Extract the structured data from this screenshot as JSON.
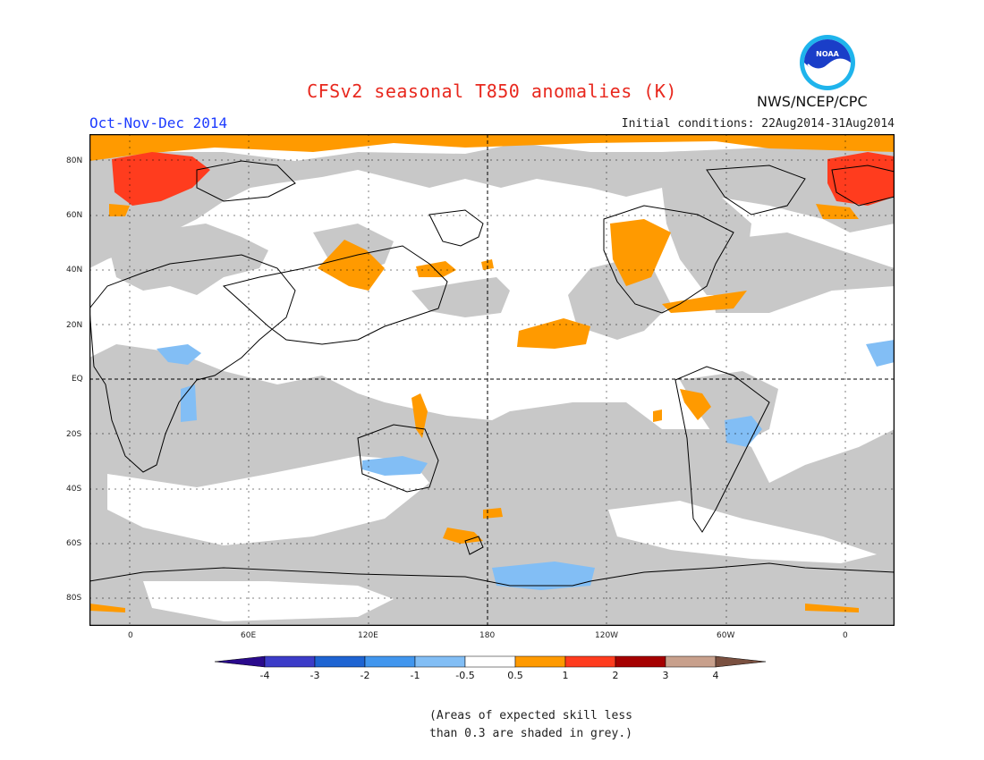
{
  "title": "CFSv2 seasonal T850 anomalies (K)",
  "period": "Oct-Nov-Dec 2014",
  "initial_conditions": "Initial conditions: 22Aug2014-31Aug2014",
  "agency": "NWS/NCEP/CPC",
  "logo_text": "NOAA",
  "lat_labels": [
    "80N",
    "60N",
    "40N",
    "20N",
    "EQ",
    "20S",
    "40S",
    "60S",
    "80S"
  ],
  "lon_labels": [
    "0",
    "60E",
    "120E",
    "180",
    "120W",
    "60W",
    "0"
  ],
  "colorbar": {
    "labels": [
      "-4",
      "-3",
      "-2",
      "-1",
      "-0.5",
      "0.5",
      "1",
      "2",
      "3",
      "4"
    ],
    "colors": [
      "#2a0a8c",
      "#3c3cc8",
      "#1e64d2",
      "#4196ee",
      "#82bef5",
      "#ffffff",
      "#ff9a00",
      "#ff3c1e",
      "#a50000",
      "#c8a08c",
      "#7a5040"
    ]
  },
  "colors": {
    "grey": "#c8c8c8",
    "orange": "#ff9a00",
    "red": "#ff3c1e",
    "light_blue": "#82bef5",
    "blue": "#4196ee"
  },
  "note_line1": "(Areas of expected skill less",
  "note_line2": "than 0.3 are shaded in grey.)"
}
